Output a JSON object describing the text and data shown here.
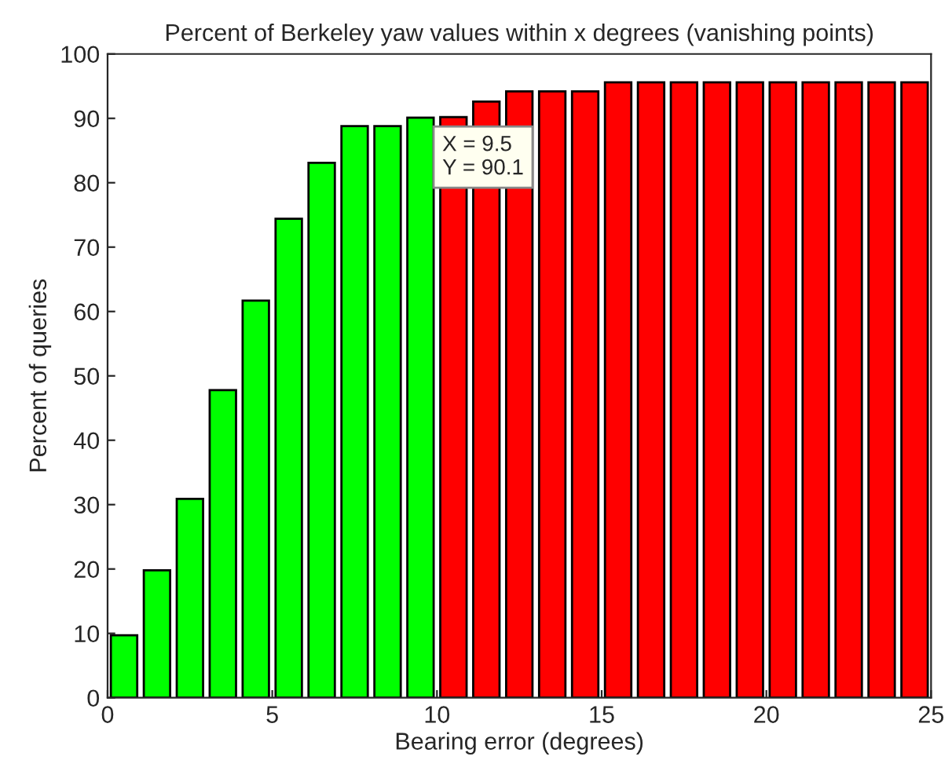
{
  "chart_data": {
    "type": "bar",
    "title": "Percent of Berkeley yaw values within x degrees (vanishing points)",
    "xlabel": "Bearing error (degrees)",
    "ylabel": "Percent of queries",
    "x": [
      0.5,
      1.5,
      2.5,
      3.5,
      4.5,
      5.5,
      6.5,
      7.5,
      8.5,
      9.5,
      10.5,
      11.5,
      12.5,
      13.5,
      14.5,
      15.5,
      16.5,
      17.5,
      18.5,
      19.5,
      20.5,
      21.5,
      22.5,
      23.5,
      24.5
    ],
    "values": [
      9.7,
      19.8,
      30.9,
      47.8,
      61.7,
      74.4,
      83.1,
      88.8,
      88.8,
      90.1,
      90.2,
      92.6,
      94.2,
      94.2,
      94.2,
      95.6,
      95.6,
      95.6,
      95.6,
      95.6,
      95.6,
      95.6,
      95.6,
      95.6,
      95.6
    ],
    "colors": [
      "#00ff00",
      "#00ff00",
      "#00ff00",
      "#00ff00",
      "#00ff00",
      "#00ff00",
      "#00ff00",
      "#00ff00",
      "#00ff00",
      "#00ff00",
      "#ff0000",
      "#ff0000",
      "#ff0000",
      "#ff0000",
      "#ff0000",
      "#ff0000",
      "#ff0000",
      "#ff0000",
      "#ff0000",
      "#ff0000",
      "#ff0000",
      "#ff0000",
      "#ff0000",
      "#ff0000",
      "#ff0000"
    ],
    "xlim": [
      0,
      25
    ],
    "xticks": [
      0,
      5,
      10,
      15,
      20,
      25
    ],
    "ylim": [
      0,
      100
    ],
    "yticks": [
      0,
      10,
      20,
      30,
      40,
      50,
      60,
      70,
      80,
      90,
      100
    ],
    "grid": false,
    "annotations": [
      {
        "text": "X = 9.5\nY = 90.1",
        "x": 9.5,
        "y": 90.1
      }
    ]
  }
}
